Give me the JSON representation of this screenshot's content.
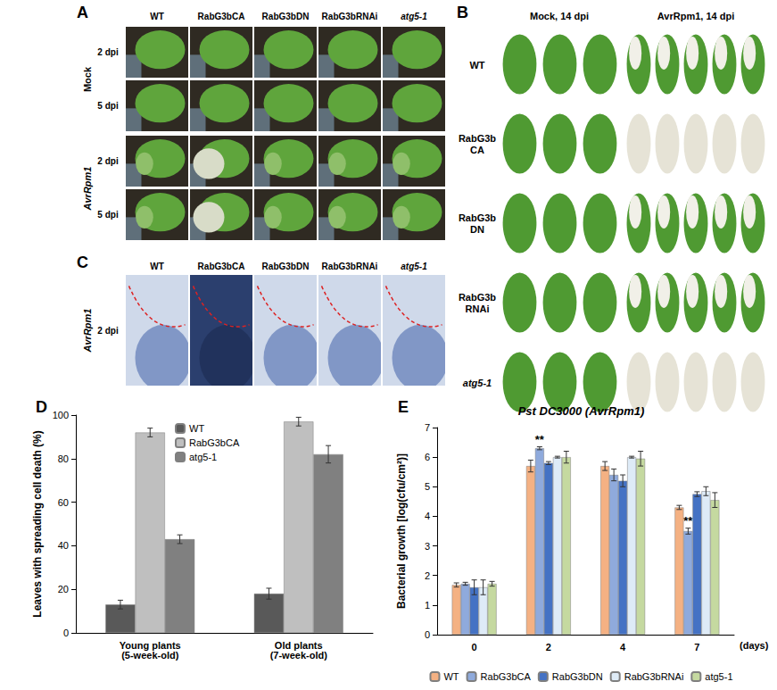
{
  "panels": {
    "A": {
      "panel": "A",
      "columns": [
        "WT",
        "RabG3bCA",
        "RabG3bDN",
        "RabG3bRNAi",
        "atg5-1"
      ],
      "groups": [
        {
          "label": "Mock",
          "rows": [
            "2 dpi",
            "5 dpi"
          ]
        },
        {
          "label": "AvrRpm1",
          "rows": [
            "2 dpi",
            "5 dpi"
          ]
        }
      ]
    },
    "B": {
      "panel": "B",
      "columns": [
        "Mock, 14 dpi",
        "AvrRpm1, 14 dpi"
      ],
      "rows": [
        "WT",
        "RabG3b CA",
        "RabG3b DN",
        "RabG3b RNAi",
        "atg5-1"
      ]
    },
    "C": {
      "panel": "C",
      "columns": [
        "WT",
        "RabG3bCA",
        "RabG3bDN",
        "RabG3bRNAi",
        "atg5-1"
      ],
      "group": "AvrRpm1",
      "row": "2 dpi"
    }
  },
  "chart_data": [
    {
      "panel": "D",
      "type": "bar",
      "categories": [
        "Young plants\n(5-week-old)",
        "Old plants\n(7-week-old)"
      ],
      "y_label": "Leaves with spreading cell death (%)",
      "series": [
        {
          "name": "WT",
          "color": "#595959",
          "values": [
            13,
            18
          ],
          "errors": [
            2,
            2.5
          ]
        },
        {
          "name": "RabG3bCA",
          "color": "#bfbfbf",
          "values": [
            92,
            97
          ],
          "errors": [
            2,
            2
          ]
        },
        {
          "name": "atg5-1",
          "color": "#808080",
          "values": [
            43,
            82
          ],
          "errors": [
            2,
            4
          ]
        }
      ],
      "ylim": [
        0,
        100
      ],
      "yticks": [
        0,
        20,
        40,
        60,
        80,
        100
      ],
      "grid": false,
      "legend": "top-right"
    },
    {
      "panel": "E",
      "type": "bar",
      "title": "Pst DC3000 (AvrRpm1)",
      "categories": [
        "0",
        "2",
        "4",
        "7"
      ],
      "x_label": "(days)",
      "y_label": "Bacterial growth [log(cfu/cm²)]",
      "series": [
        {
          "name": "WT",
          "color": "#f4b183",
          "values": [
            1.68,
            5.7,
            5.7,
            4.3
          ],
          "errors": [
            0.07,
            0.2,
            0.15,
            0.07
          ]
        },
        {
          "name": "RabG3bCA",
          "color": "#8faadc",
          "values": [
            1.72,
            6.3,
            5.4,
            3.5
          ],
          "errors": [
            0.05,
            0.05,
            0.2,
            0.1
          ]
        },
        {
          "name": "RabG3bDN",
          "color": "#4472c4",
          "values": [
            1.6,
            5.8,
            5.2,
            4.75
          ],
          "errors": [
            0.25,
            0.05,
            0.2,
            0.08
          ]
        },
        {
          "name": "RabG3bRNAi",
          "color": "#deebf7",
          "values": [
            1.6,
            6.0,
            6.0,
            4.85
          ],
          "errors": [
            0.25,
            0.03,
            0.03,
            0.15
          ]
        },
        {
          "name": "atg5-1",
          "color": "#c5d9a0",
          "values": [
            1.72,
            6.0,
            5.95,
            4.55
          ],
          "errors": [
            0.08,
            0.2,
            0.25,
            0.25
          ]
        }
      ],
      "annotations": [
        {
          "text": "**",
          "category": "2",
          "series": "RabG3bCA"
        },
        {
          "text": "**",
          "category": "7",
          "series": "RabG3bCA"
        }
      ],
      "ylim": [
        0,
        7
      ],
      "yticks": [
        0,
        1,
        2,
        3,
        4,
        5,
        6,
        7
      ],
      "grid": false,
      "legend": "bottom"
    }
  ]
}
